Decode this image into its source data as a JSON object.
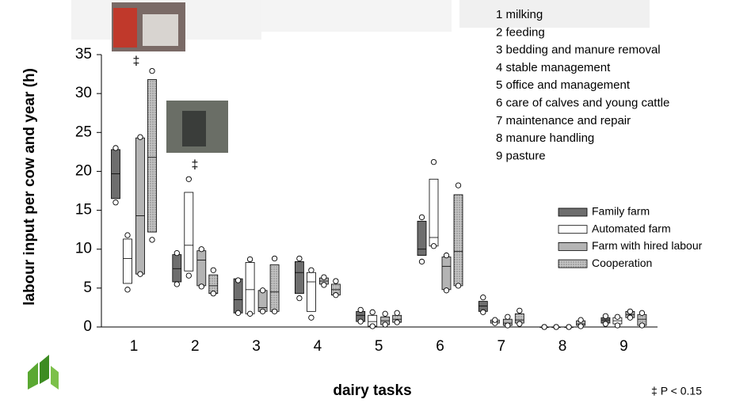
{
  "chart_data": {
    "type": "box",
    "y_label": "labour input per cow and year (h)",
    "x_label": "dairy tasks",
    "categories": [
      "1",
      "2",
      "3",
      "4",
      "5",
      "6",
      "7",
      "8",
      "9"
    ],
    "ylim": [
      0,
      35
    ],
    "yticks": [
      0,
      5,
      10,
      15,
      20,
      25,
      30,
      35
    ],
    "series": [
      {
        "name": "Family farm",
        "color": "#6e6e6e",
        "q1": [
          16.5,
          5.8,
          1.8,
          4.3,
          0.7,
          9.2,
          2.0,
          0,
          0.5
        ],
        "median": [
          19.7,
          7.5,
          3.5,
          7.0,
          1.5,
          10.0,
          2.7,
          0,
          0.9
        ],
        "q3": [
          22.8,
          9.3,
          6.2,
          8.4,
          2.0,
          13.6,
          3.3,
          0,
          1.2
        ],
        "min": [
          16.0,
          5.5,
          1.8,
          3.7,
          0.7,
          8.4,
          1.9,
          0,
          0.4
        ],
        "max": [
          23.0,
          9.5,
          6.0,
          8.8,
          2.2,
          14.1,
          3.8,
          0,
          1.4
        ]
      },
      {
        "name": "Automated farm",
        "color": "#ffffff",
        "q1": [
          5.6,
          7.2,
          1.7,
          2.0,
          0.1,
          10.4,
          0.5,
          0,
          0.4
        ],
        "median": [
          8.8,
          10.5,
          4.8,
          5.8,
          0.7,
          11.5,
          0.7,
          0,
          0.8
        ],
        "q3": [
          11.3,
          17.3,
          8.3,
          7.0,
          1.5,
          19.0,
          0.9,
          0,
          1.2
        ],
        "min": [
          4.8,
          6.6,
          1.7,
          1.2,
          0.1,
          10.4,
          0.5,
          0,
          0.2
        ],
        "max": [
          11.8,
          19.0,
          8.7,
          7.3,
          1.9,
          21.2,
          0.9,
          0,
          1.3
        ]
      },
      {
        "name": "Farm with hired labour",
        "color": "#b4b4b4",
        "q1": [
          6.8,
          5.3,
          2.0,
          5.5,
          0.3,
          4.8,
          0.2,
          0,
          1.2
        ],
        "median": [
          14.3,
          8.6,
          2.5,
          5.9,
          0.8,
          7.8,
          0.5,
          0,
          1.6
        ],
        "q3": [
          24.3,
          9.8,
          4.7,
          6.3,
          1.3,
          9.0,
          1.0,
          0,
          2.0
        ],
        "min": [
          6.8,
          5.2,
          2.0,
          5.4,
          0.3,
          4.7,
          0.2,
          0,
          1.2
        ],
        "max": [
          24.4,
          10.0,
          4.7,
          6.4,
          1.7,
          9.2,
          1.3,
          0,
          2.0
        ]
      },
      {
        "name": "Cooperation",
        "color": "#c4c4c4",
        "pattern": "dots",
        "q1": [
          12.2,
          4.3,
          2.0,
          4.1,
          0.6,
          5.3,
          0.5,
          0.2,
          0.2
        ],
        "median": [
          21.8,
          5.3,
          4.5,
          4.8,
          1.0,
          9.7,
          0.9,
          0.4,
          1.0
        ],
        "q3": [
          31.8,
          6.7,
          8.0,
          5.5,
          1.5,
          17.0,
          1.7,
          0.8,
          1.6
        ],
        "min": [
          11.2,
          4.3,
          2.0,
          4.1,
          0.6,
          5.3,
          0.4,
          0.1,
          0.2
        ],
        "max": [
          32.9,
          7.3,
          8.8,
          5.9,
          1.8,
          18.2,
          2.1,
          0.9,
          1.8
        ]
      }
    ],
    "task_list": [
      "1 milking",
      "2 feeding",
      "3 bedding and manure removal",
      "4 stable management",
      "5 office and management",
      "6 care of calves and young cattle",
      "7 maintenance and repair",
      "8 manure handling",
      "9 pasture"
    ],
    "annotations": [
      "‡",
      "‡"
    ],
    "footnote": "‡ P < 0.15"
  }
}
